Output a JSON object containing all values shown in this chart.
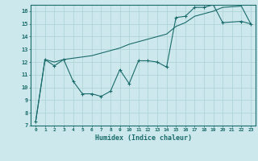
{
  "xlabel": "Humidex (Indice chaleur)",
  "bg_color": "#cce8ec",
  "line_color": "#1a6b6b",
  "grid_color": "#b0d4d8",
  "xlim": [
    -0.5,
    23.5
  ],
  "ylim": [
    7,
    16.5
  ],
  "xticks": [
    0,
    1,
    2,
    3,
    4,
    5,
    6,
    7,
    8,
    9,
    10,
    11,
    12,
    13,
    14,
    15,
    16,
    17,
    18,
    19,
    20,
    21,
    22,
    23
  ],
  "yticks": [
    7,
    8,
    9,
    10,
    11,
    12,
    13,
    14,
    15,
    16
  ],
  "line1_x": [
    0,
    1,
    2,
    3,
    4,
    5,
    6,
    7,
    8,
    9,
    10,
    11,
    12,
    13,
    14,
    15,
    16,
    17,
    18,
    19,
    20,
    22,
    23
  ],
  "line1_y": [
    7.3,
    12.2,
    11.7,
    12.2,
    10.5,
    9.5,
    9.5,
    9.3,
    9.7,
    11.4,
    10.3,
    12.1,
    12.1,
    12.0,
    11.6,
    15.5,
    15.6,
    16.3,
    16.3,
    16.5,
    15.1,
    15.2,
    15.0
  ],
  "line2_x": [
    0,
    1,
    2,
    3,
    4,
    5,
    6,
    7,
    8,
    9,
    10,
    11,
    12,
    13,
    14,
    15,
    16,
    17,
    18,
    19,
    20,
    22,
    23
  ],
  "line2_y": [
    7.3,
    12.2,
    12.0,
    12.2,
    12.3,
    12.4,
    12.5,
    12.7,
    12.9,
    13.1,
    13.4,
    13.6,
    13.8,
    14.0,
    14.2,
    14.8,
    15.1,
    15.6,
    15.8,
    16.0,
    16.3,
    16.4,
    15.0
  ]
}
